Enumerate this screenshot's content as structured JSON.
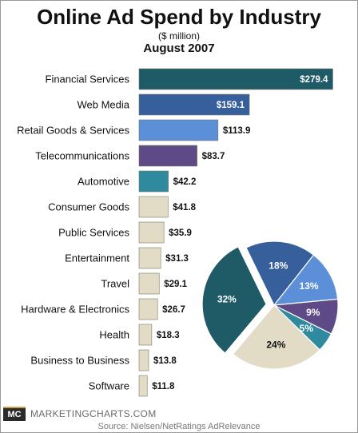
{
  "header": {
    "title": "Online Ad Spend by Industry",
    "subtitle": "($ million)",
    "period": "August 2007"
  },
  "footer": {
    "logo": "MC",
    "brand": "MARKETINGCHARTS.COM",
    "source": "Source: Nielsen/NetRatings AdRelevance"
  },
  "colors": {
    "financial": "#1e5b66",
    "web_media": "#375f9c",
    "retail": "#5b8fd8",
    "telecom": "#5d4a86",
    "automotive": "#2f8aa0",
    "other": "#e2dcc7",
    "bar_edge": "#7a7a6a"
  },
  "chart_data": [
    {
      "type": "bar",
      "orientation": "horizontal",
      "title": "Online Ad Spend by Industry",
      "subtitle": "($ million)",
      "categories": [
        "Financial Services",
        "Web Media",
        "Retail Goods & Services",
        "Telecommunications",
        "Automotive",
        "Consumer Goods",
        "Public Services",
        "Entertainment",
        "Travel",
        "Hardware & Electronics",
        "Health",
        "Business to Business",
        "Software"
      ],
      "values": [
        279.4,
        159.1,
        113.9,
        83.7,
        42.2,
        41.8,
        35.9,
        31.3,
        29.1,
        26.7,
        18.3,
        13.8,
        11.8
      ],
      "value_labels": [
        "$279.4",
        "$159.1",
        "$113.9",
        "$83.7",
        "$42.2",
        "$41.8",
        "$35.9",
        "$31.3",
        "$29.1",
        "$26.7",
        "$18.3",
        "$13.8",
        "$11.8"
      ],
      "colors": [
        "#1e5b66",
        "#375f9c",
        "#5b8fd8",
        "#5d4a86",
        "#2f8aa0",
        "#e2dcc7",
        "#e2dcc7",
        "#e2dcc7",
        "#e2dcc7",
        "#e2dcc7",
        "#e2dcc7",
        "#e2dcc7",
        "#e2dcc7"
      ],
      "xlim": [
        0,
        280
      ]
    },
    {
      "type": "pie",
      "slices": [
        {
          "value": 32,
          "label": "32%",
          "color": "#1e5b66",
          "exploded": true
        },
        {
          "value": 18,
          "label": "18%",
          "color": "#375f9c",
          "exploded": false
        },
        {
          "value": 13,
          "label": "13%",
          "color": "#5b8fd8",
          "exploded": false
        },
        {
          "value": 9,
          "label": "9%",
          "color": "#5d4a86",
          "exploded": false
        },
        {
          "value": 5,
          "label": "5%",
          "color": "#2f8aa0",
          "exploded": false
        },
        {
          "value": 24,
          "label": "24%",
          "color": "#e2dcc7",
          "exploded": false
        }
      ]
    }
  ]
}
